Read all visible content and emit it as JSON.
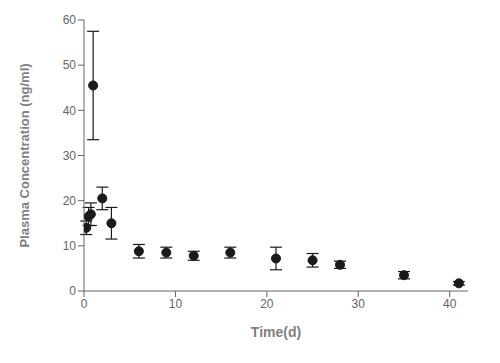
{
  "chart_data": {
    "type": "scatter",
    "xlabel": "Time(d)",
    "ylabel": "Plasma Concentration (ng/ml)",
    "x": [
      0.25,
      0.5,
      0.75,
      1.0,
      2.0,
      3.0,
      6.0,
      9.0,
      12.0,
      16.0,
      21.0,
      25.0,
      28.0,
      35.0,
      41.0
    ],
    "values": [
      14.0,
      16.5,
      17.0,
      45.5,
      20.5,
      15.0,
      8.8,
      8.5,
      7.8,
      8.5,
      7.2,
      6.8,
      5.8,
      3.5,
      1.7
    ],
    "yerr": [
      1.5,
      2.0,
      2.5,
      12.0,
      2.5,
      3.5,
      1.5,
      1.2,
      1.0,
      1.2,
      2.5,
      1.5,
      0.8,
      0.8,
      0.4
    ],
    "xlim": [
      0,
      42
    ],
    "ylim": [
      0,
      60
    ],
    "xticks": [
      0,
      10,
      20,
      30,
      40
    ],
    "yticks": [
      0,
      10,
      20,
      30,
      40,
      50,
      60
    ],
    "color": "#1a1a1a",
    "marker": "circle",
    "grid": false
  }
}
